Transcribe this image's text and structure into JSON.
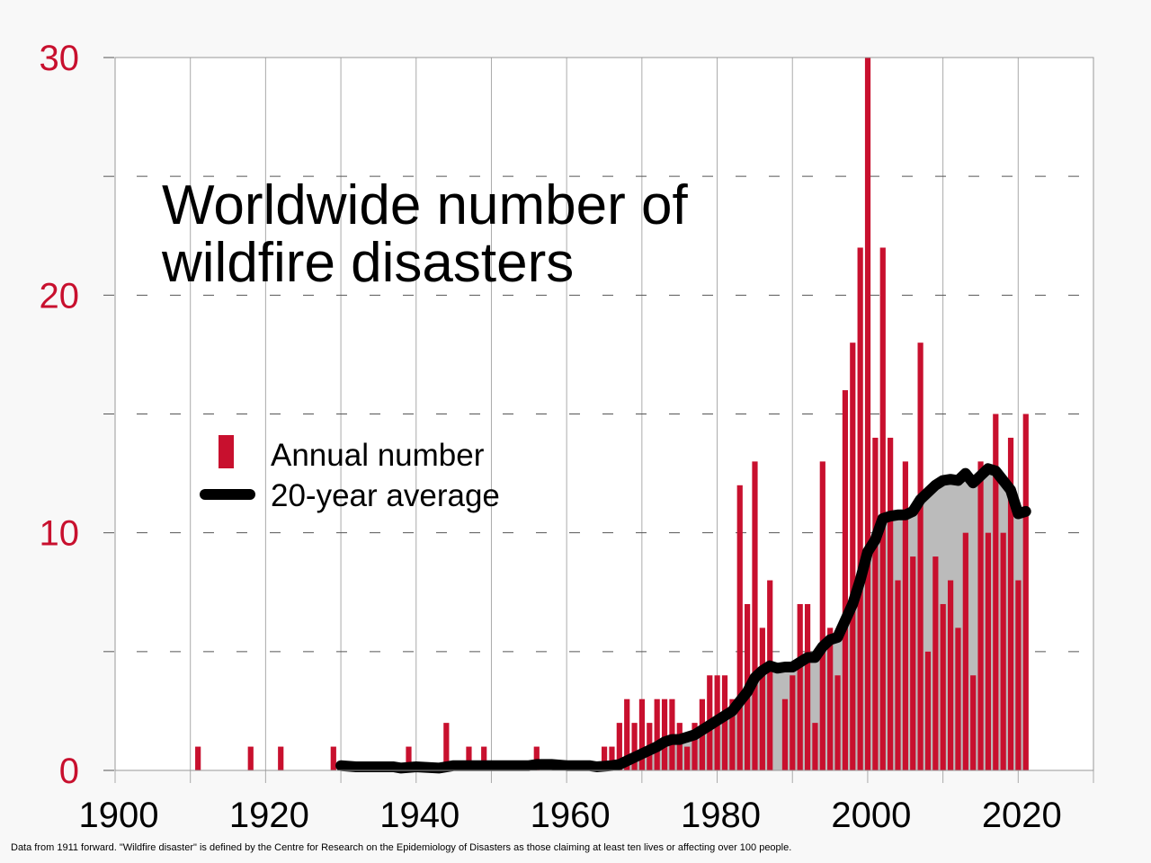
{
  "chart_data": {
    "type": "bar",
    "title_lines": [
      "Worldwide number of",
      "wildfire disasters"
    ],
    "xlabel": "",
    "ylabel": "",
    "xlim": [
      1900,
      2030
    ],
    "ylim": [
      0,
      30
    ],
    "xticks": [
      1900,
      1920,
      1940,
      1960,
      1980,
      2000,
      2020
    ],
    "yticks": [
      0,
      10,
      20,
      30
    ],
    "grid": true,
    "legend_placement": "center-left",
    "colors": {
      "bars": "#c8102e",
      "average": "#000000",
      "average_fill": "#bbbbbb",
      "ytick_labels": "#c8102e"
    },
    "series": [
      {
        "name": "Annual number",
        "kind": "bar",
        "points": [
          [
            1911,
            1
          ],
          [
            1918,
            1
          ],
          [
            1922,
            1
          ],
          [
            1929,
            1
          ],
          [
            1939,
            1
          ],
          [
            1944,
            2
          ],
          [
            1947,
            1
          ],
          [
            1949,
            1
          ],
          [
            1956,
            1
          ],
          [
            1965,
            1
          ],
          [
            1966,
            1
          ],
          [
            1967,
            2
          ],
          [
            1968,
            3
          ],
          [
            1969,
            2
          ],
          [
            1970,
            3
          ],
          [
            1971,
            2
          ],
          [
            1972,
            3
          ],
          [
            1973,
            3
          ],
          [
            1974,
            3
          ],
          [
            1975,
            2
          ],
          [
            1976,
            1
          ],
          [
            1977,
            2
          ],
          [
            1978,
            3
          ],
          [
            1979,
            4
          ],
          [
            1980,
            4
          ],
          [
            1981,
            4
          ],
          [
            1982,
            3
          ],
          [
            1983,
            12
          ],
          [
            1984,
            7
          ],
          [
            1985,
            13
          ],
          [
            1986,
            6
          ],
          [
            1987,
            8
          ],
          [
            1989,
            3
          ],
          [
            1990,
            4
          ],
          [
            1991,
            7
          ],
          [
            1992,
            7
          ],
          [
            1993,
            2
          ],
          [
            1994,
            13
          ],
          [
            1995,
            6
          ],
          [
            1996,
            4
          ],
          [
            1997,
            16
          ],
          [
            1998,
            18
          ],
          [
            1999,
            22
          ],
          [
            2000,
            30
          ],
          [
            2001,
            14
          ],
          [
            2002,
            22
          ],
          [
            2003,
            14
          ],
          [
            2004,
            8
          ],
          [
            2005,
            13
          ],
          [
            2006,
            9
          ],
          [
            2007,
            18
          ],
          [
            2008,
            5
          ],
          [
            2009,
            9
          ],
          [
            2010,
            7
          ],
          [
            2011,
            8
          ],
          [
            2012,
            6
          ],
          [
            2013,
            10
          ],
          [
            2014,
            4
          ],
          [
            2015,
            13
          ],
          [
            2016,
            10
          ],
          [
            2017,
            15
          ],
          [
            2018,
            10
          ],
          [
            2019,
            14
          ],
          [
            2020,
            8
          ],
          [
            2021,
            15
          ]
        ]
      },
      {
        "name": "20-year average",
        "kind": "line",
        "points": [
          [
            1930,
            0.2
          ],
          [
            1932,
            0.15
          ],
          [
            1937,
            0.15
          ],
          [
            1938,
            0.1
          ],
          [
            1940,
            0.15
          ],
          [
            1943,
            0.1
          ],
          [
            1945,
            0.2
          ],
          [
            1950,
            0.2
          ],
          [
            1955,
            0.2
          ],
          [
            1956,
            0.25
          ],
          [
            1958,
            0.25
          ],
          [
            1960,
            0.2
          ],
          [
            1963,
            0.2
          ],
          [
            1964,
            0.15
          ],
          [
            1966,
            0.2
          ],
          [
            1967,
            0.25
          ],
          [
            1968,
            0.4
          ],
          [
            1970,
            0.7
          ],
          [
            1972,
            1.0
          ],
          [
            1973,
            1.2
          ],
          [
            1974,
            1.3
          ],
          [
            1975,
            1.3
          ],
          [
            1976,
            1.4
          ],
          [
            1977,
            1.5
          ],
          [
            1978,
            1.7
          ],
          [
            1979,
            1.9
          ],
          [
            1980,
            2.1
          ],
          [
            1981,
            2.3
          ],
          [
            1982,
            2.5
          ],
          [
            1983,
            2.9
          ],
          [
            1984,
            3.3
          ],
          [
            1985,
            3.9
          ],
          [
            1986,
            4.2
          ],
          [
            1987,
            4.4
          ],
          [
            1988,
            4.3
          ],
          [
            1989,
            4.35
          ],
          [
            1990,
            4.35
          ],
          [
            1991,
            4.55
          ],
          [
            1992,
            4.75
          ],
          [
            1993,
            4.75
          ],
          [
            1994,
            5.2
          ],
          [
            1995,
            5.5
          ],
          [
            1996,
            5.6
          ],
          [
            1997,
            6.3
          ],
          [
            1998,
            7.0
          ],
          [
            1999,
            8.0
          ],
          [
            2000,
            9.2
          ],
          [
            2001,
            9.7
          ],
          [
            2002,
            10.6
          ],
          [
            2003,
            10.7
          ],
          [
            2004,
            10.75
          ],
          [
            2005,
            10.75
          ],
          [
            2006,
            10.9
          ],
          [
            2007,
            11.4
          ],
          [
            2008,
            11.7
          ],
          [
            2009,
            12.0
          ],
          [
            2010,
            12.2
          ],
          [
            2011,
            12.25
          ],
          [
            2012,
            12.2
          ],
          [
            2013,
            12.5
          ],
          [
            2014,
            12.1
          ],
          [
            2015,
            12.4
          ],
          [
            2016,
            12.7
          ],
          [
            2017,
            12.6
          ],
          [
            2018,
            12.2
          ],
          [
            2019,
            11.8
          ],
          [
            2020,
            10.8
          ],
          [
            2021,
            10.9
          ]
        ]
      }
    ],
    "footnote": "Data from 1911 forward. \"Wildfire disaster\" is defined by the Centre for Research on the Epidemiology of Disasters as those claiming at least ten lives or affecting over 100 people."
  }
}
